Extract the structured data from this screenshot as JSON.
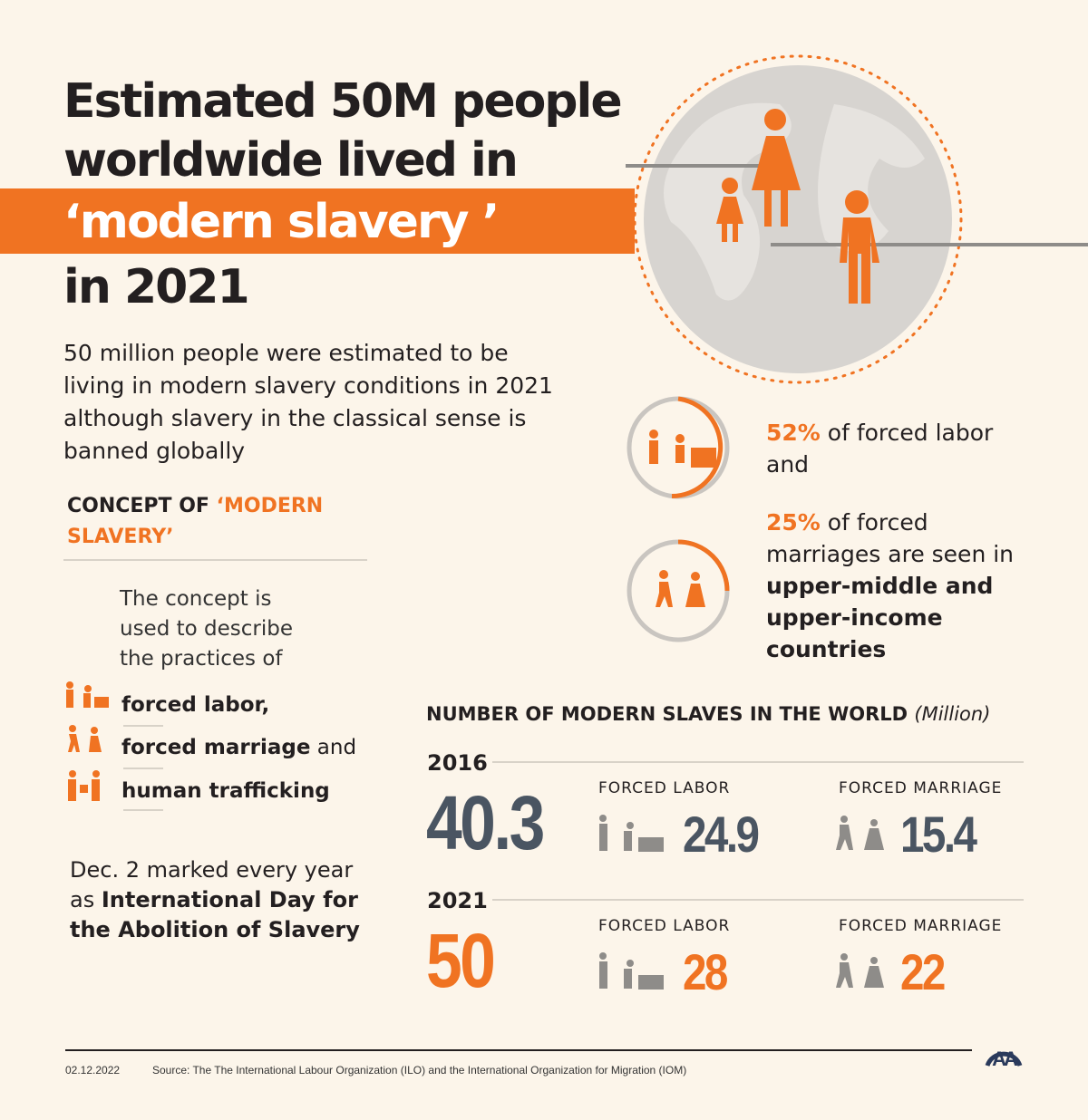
{
  "title": {
    "line1": "Estimated 50M people",
    "line2": "worldwide lived in",
    "line3": "‘modern slavery ’",
    "line4": "in 2021"
  },
  "lead": "50 million people were estimated to be living in modern slavery conditions in 2021 although slavery in the classical sense is banned globally",
  "concept": {
    "heading_a": "CONCEPT OF ",
    "heading_b": "‘MODERN SLAVERY’",
    "description": "The concept is used to describe the practices of",
    "items": [
      {
        "label": "forced labor,",
        "suffix": ""
      },
      {
        "label": "forced marriage",
        "suffix": " and"
      },
      {
        "label": "human trafficking",
        "suffix": ""
      }
    ]
  },
  "abolition": {
    "text_a": "Dec. 2 marked every year as ",
    "text_b": "International Day for the Abolition of Slavery"
  },
  "stats": {
    "labor_pct": "52%",
    "labor_text": " of forced labor and",
    "marriage_pct": "25%",
    "marriage_text": " of forced marriages are seen in ",
    "marriage_bold": "upper-middle and upper-income countries"
  },
  "chart_data": {
    "type": "table",
    "title": "NUMBER OF MODERN SLAVES IN THE WORLD",
    "unit": "(Million)",
    "rows": [
      {
        "year": "2016",
        "total": "40.3",
        "forced_labor": "24.9",
        "forced_marriage": "15.4",
        "color": "#4a5562"
      },
      {
        "year": "2021",
        "total": "50",
        "forced_labor": "28",
        "forced_marriage": "22",
        "color": "#f07322"
      }
    ],
    "labels": {
      "forced_labor": "FORCED LABOR",
      "forced_marriage": "FORCED MARRIAGE"
    }
  },
  "footer": {
    "date": "02.12.2022",
    "source": "Source: The The International Labour Organization (ILO) and the International Organization for Migration (IOM)",
    "logo": "AA"
  },
  "colors": {
    "accent": "#f07322",
    "slate": "#4a5562",
    "icon_gray": "#8e8c89"
  }
}
